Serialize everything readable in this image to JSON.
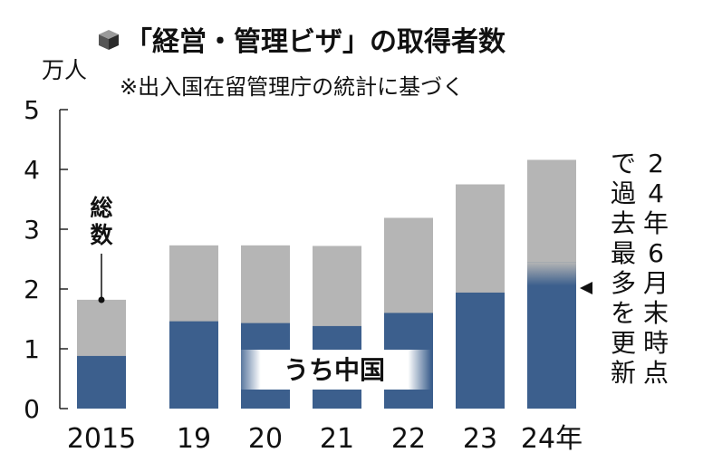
{
  "chart_data": {
    "type": "bar",
    "title": "「経営・管理ビザ」の取得者数",
    "subtitle": "※出入国在留管理庁の統計に基づく",
    "ylabel": "万人",
    "ylim": [
      0,
      5
    ],
    "yticks": [
      "0",
      "1",
      "2",
      "3",
      "4",
      "5"
    ],
    "categories": [
      "2015",
      "19",
      "20",
      "21",
      "22",
      "23",
      "24年"
    ],
    "series": [
      {
        "name": "総数",
        "values": [
          1.82,
          2.73,
          2.73,
          2.72,
          3.19,
          3.75,
          4.16
        ]
      },
      {
        "name": "うち中国",
        "values": [
          0.88,
          1.46,
          1.43,
          1.38,
          1.6,
          1.94,
          2.45
        ]
      }
    ],
    "annotations": {
      "total_label": "総数",
      "china_label": "うち中国",
      "note": "24年6月末時点で過去最多を更新"
    },
    "colors": {
      "total": "#b5b5b5",
      "china": "#3c5f8d",
      "axis": "#222222"
    },
    "grid": false,
    "legend": "none"
  }
}
